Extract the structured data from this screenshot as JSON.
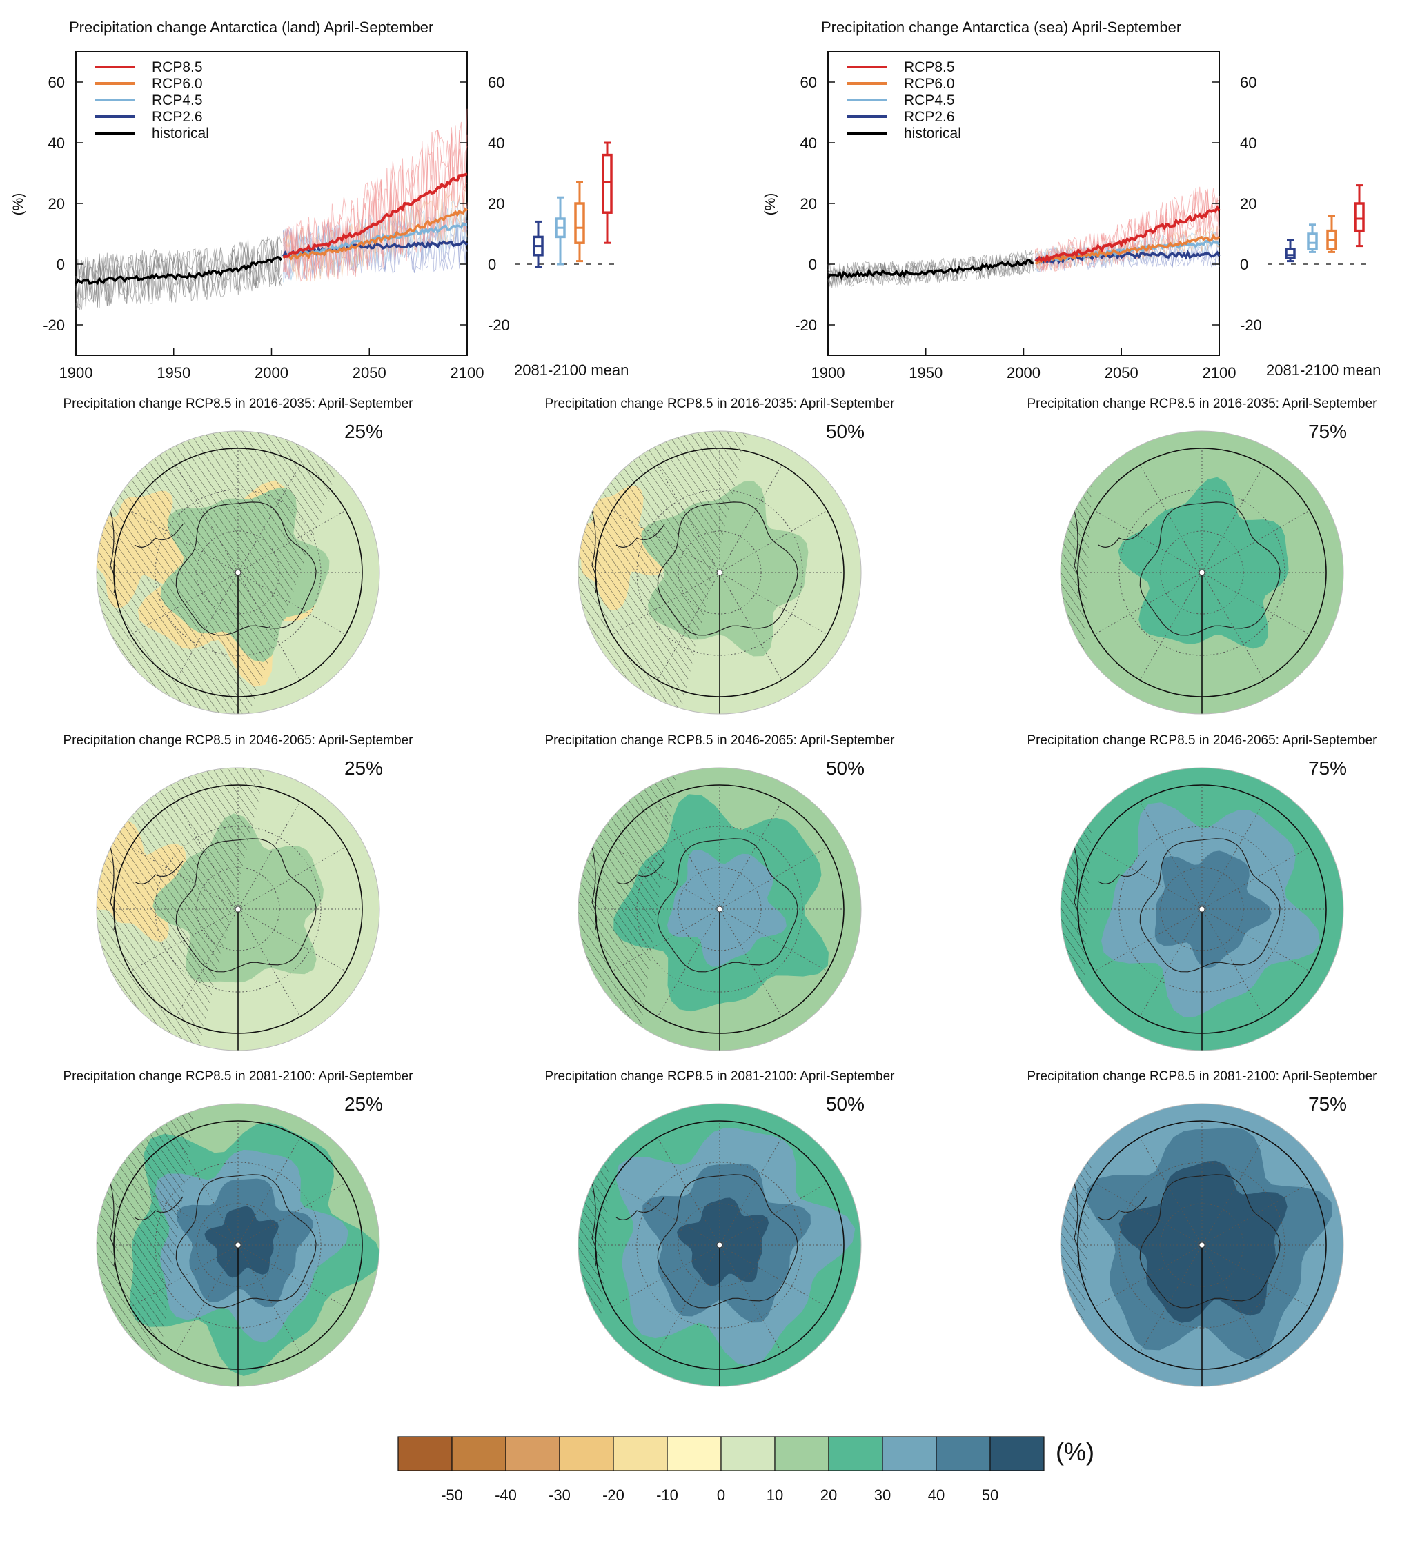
{
  "timeseries": [
    {
      "title": "Precipitation change Antarctica (land) April-September",
      "ylabel": "(%)",
      "xticks": [
        "1900",
        "1950",
        "2000",
        "2050",
        "2100"
      ],
      "yticks": [
        "-20",
        "0",
        "20",
        "40",
        "60"
      ],
      "mean_label": "2081-2100 mean"
    },
    {
      "title": "Precipitation change Antarctica (sea) April-September",
      "ylabel": "(%)",
      "xticks": [
        "1900",
        "1950",
        "2000",
        "2050",
        "2100"
      ],
      "yticks": [
        "-20",
        "0",
        "20",
        "40",
        "60"
      ],
      "mean_label": "2081-2100 mean"
    }
  ],
  "legend": [
    {
      "label": "RCP8.5",
      "color": "#d62728"
    },
    {
      "label": "RCP6.0",
      "color": "#e8803a"
    },
    {
      "label": "RCP4.5",
      "color": "#7fb3d8"
    },
    {
      "label": "RCP2.6",
      "color": "#2c3f8a"
    },
    {
      "label": "historical",
      "color": "#000000"
    }
  ],
  "maps": [
    {
      "title": "Precipitation change RCP8.5 in 2016-2035: April-September",
      "pct": "25%"
    },
    {
      "title": "Precipitation change RCP8.5 in 2016-2035: April-September",
      "pct": "50%"
    },
    {
      "title": "Precipitation change RCP8.5 in 2016-2035: April-September",
      "pct": "75%"
    },
    {
      "title": "Precipitation change RCP8.5 in 2046-2065: April-September",
      "pct": "25%"
    },
    {
      "title": "Precipitation change RCP8.5 in 2046-2065: April-September",
      "pct": "50%"
    },
    {
      "title": "Precipitation change RCP8.5 in 2046-2065: April-September",
      "pct": "75%"
    },
    {
      "title": "Precipitation change RCP8.5 in 2081-2100: April-September",
      "pct": "25%"
    },
    {
      "title": "Precipitation change RCP8.5 in 2081-2100: April-September",
      "pct": "50%"
    },
    {
      "title": "Precipitation change RCP8.5 in 2081-2100: April-September",
      "pct": "75%"
    }
  ],
  "colorbar": {
    "unit": "(%)",
    "ticks": [
      "-50",
      "-40",
      "-30",
      "-20",
      "-10",
      "0",
      "10",
      "20",
      "30",
      "40",
      "50"
    ],
    "colors": [
      "#a8612c",
      "#c17f3e",
      "#d89d62",
      "#efc77e",
      "#f6e19f",
      "#fff6bf",
      "#d4e7bf",
      "#a2cf9f",
      "#55b994",
      "#72a6bb",
      "#4b7f99",
      "#2c5671"
    ]
  },
  "chart_data": [
    {
      "type": "line",
      "title": "Precipitation change Antarctica (land) April-September",
      "xlabel": "",
      "ylabel": "(%)",
      "xlim": [
        1900,
        2100
      ],
      "ylim": [
        -30,
        70
      ],
      "grid": false,
      "legend_position": "top-left",
      "series": [
        {
          "name": "historical",
          "x": [
            1900,
            1920,
            1940,
            1960,
            1980,
            2005
          ],
          "values": [
            -6,
            -5,
            -4,
            -4,
            -2,
            2
          ]
        },
        {
          "name": "RCP2.6",
          "x": [
            2006,
            2030,
            2050,
            2070,
            2100
          ],
          "values": [
            3,
            5,
            6,
            6,
            7
          ]
        },
        {
          "name": "RCP4.5",
          "x": [
            2006,
            2030,
            2050,
            2070,
            2100
          ],
          "values": [
            3,
            5,
            8,
            10,
            13
          ]
        },
        {
          "name": "RCP6.0",
          "x": [
            2006,
            2030,
            2050,
            2070,
            2100
          ],
          "values": [
            2,
            4,
            7,
            11,
            18
          ]
        },
        {
          "name": "RCP8.5",
          "x": [
            2006,
            2030,
            2050,
            2070,
            2100
          ],
          "values": [
            3,
            7,
            12,
            20,
            30
          ]
        }
      ],
      "boxes_2081_2100_mean": [
        {
          "name": "RCP2.6",
          "min": -1,
          "q1": 3,
          "median": 6,
          "q3": 9,
          "max": 14
        },
        {
          "name": "RCP4.5",
          "min": 0,
          "q1": 9,
          "median": 12,
          "q3": 15,
          "max": 22
        },
        {
          "name": "RCP6.0",
          "min": 1,
          "q1": 7,
          "median": 12,
          "q3": 20,
          "max": 27
        },
        {
          "name": "RCP8.5",
          "min": 7,
          "q1": 17,
          "median": 27,
          "q3": 36,
          "max": 40
        }
      ]
    },
    {
      "type": "line",
      "title": "Precipitation change Antarctica (sea) April-September",
      "xlabel": "",
      "ylabel": "(%)",
      "xlim": [
        1900,
        2100
      ],
      "ylim": [
        -30,
        70
      ],
      "grid": false,
      "legend_position": "top-left",
      "series": [
        {
          "name": "historical",
          "x": [
            1900,
            1920,
            1940,
            1960,
            1980,
            2005
          ],
          "values": [
            -4,
            -3,
            -3,
            -2,
            -1,
            1
          ]
        },
        {
          "name": "RCP2.6",
          "x": [
            2006,
            2030,
            2050,
            2070,
            2100
          ],
          "values": [
            1,
            2,
            3,
            3,
            3
          ]
        },
        {
          "name": "RCP4.5",
          "x": [
            2006,
            2030,
            2050,
            2070,
            2100
          ],
          "values": [
            1,
            3,
            4,
            6,
            7
          ]
        },
        {
          "name": "RCP6.0",
          "x": [
            2006,
            2030,
            2050,
            2070,
            2100
          ],
          "values": [
            1,
            3,
            4,
            6,
            9
          ]
        },
        {
          "name": "RCP8.5",
          "x": [
            2006,
            2030,
            2050,
            2070,
            2100
          ],
          "values": [
            1,
            4,
            7,
            12,
            18
          ]
        }
      ],
      "boxes_2081_2100_mean": [
        {
          "name": "RCP2.6",
          "min": 1,
          "q1": 2,
          "median": 3,
          "q3": 5,
          "max": 8
        },
        {
          "name": "RCP4.5",
          "min": 4,
          "q1": 5,
          "median": 7,
          "q3": 10,
          "max": 13
        },
        {
          "name": "RCP6.0",
          "min": 4,
          "q1": 5,
          "median": 8,
          "q3": 11,
          "max": 16
        },
        {
          "name": "RCP8.5",
          "min": 6,
          "q1": 11,
          "median": 15,
          "q3": 20,
          "max": 26
        }
      ]
    },
    {
      "type": "heatmap",
      "projection": "south-polar-stereographic",
      "scenario": "RCP8.5",
      "season": "April-September",
      "colorbar_levels_pct": [
        -50,
        -40,
        -30,
        -20,
        -10,
        0,
        10,
        20,
        30,
        40,
        50
      ],
      "panels": [
        {
          "period": "2016-2035",
          "percentile": "25%",
          "dominant_change_pct": [
            0,
            10
          ],
          "hatched": "most"
        },
        {
          "period": "2016-2035",
          "percentile": "50%",
          "dominant_change_pct": [
            0,
            10
          ],
          "hatched": "much"
        },
        {
          "period": "2016-2035",
          "percentile": "75%",
          "dominant_change_pct": [
            10,
            20
          ],
          "hatched": "little"
        },
        {
          "period": "2046-2065",
          "percentile": "25%",
          "dominant_change_pct": [
            0,
            10
          ],
          "hatched": "much"
        },
        {
          "period": "2046-2065",
          "percentile": "50%",
          "dominant_change_pct": [
            10,
            30
          ],
          "hatched": "some"
        },
        {
          "period": "2046-2065",
          "percentile": "75%",
          "dominant_change_pct": [
            20,
            40
          ],
          "hatched": "little"
        },
        {
          "period": "2081-2100",
          "percentile": "25%",
          "dominant_change_pct": [
            10,
            50
          ],
          "hatched": "some"
        },
        {
          "period": "2081-2100",
          "percentile": "50%",
          "dominant_change_pct": [
            20,
            50
          ],
          "hatched": "little"
        },
        {
          "period": "2081-2100",
          "percentile": "75%",
          "dominant_change_pct": [
            30,
            60
          ],
          "hatched": "little"
        }
      ]
    }
  ]
}
